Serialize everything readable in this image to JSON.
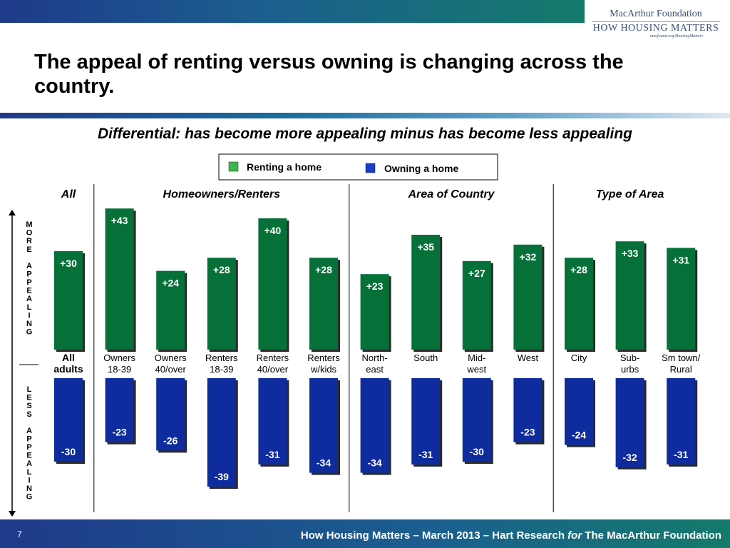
{
  "header": {
    "logo": {
      "line1": "MacArthur Foundation",
      "line2": "HOW HOUSING MATTERS",
      "url": "macfound.org/HousingMatters"
    }
  },
  "title": "The appeal of renting versus owning is changing across the country.",
  "subtitle": "Differential:  has become more appealing minus has become less appealing",
  "footer": {
    "page": "7",
    "text_a": "How Housing Matters – March 2013 – Hart Research ",
    "text_for": "for",
    "text_b": " The MacArthur Foundation"
  },
  "side_labels": {
    "more": "MORE APPEALING",
    "less": "LESS APPEALING"
  },
  "colors": {
    "renting": "#057139",
    "owning": "#0e2c9e",
    "renting_legend": "#3cb84a",
    "owning_legend": "#1a3cc8",
    "accent": "#1f3a8a"
  },
  "chart_data": {
    "type": "bar",
    "legend": {
      "placement": "top-center",
      "entries": [
        "Renting a home",
        "Owning a home"
      ]
    },
    "groups": [
      {
        "label": "All",
        "span": [
          0,
          0
        ]
      },
      {
        "label": "Homeowners/Renters",
        "span": [
          1,
          5
        ]
      },
      {
        "label": "Area of Country",
        "span": [
          6,
          9
        ]
      },
      {
        "label": "Type of Area",
        "span": [
          10,
          12
        ]
      }
    ],
    "categories": [
      [
        "All",
        "adults"
      ],
      [
        "Owners",
        "18-39"
      ],
      [
        "Owners",
        "40/over"
      ],
      [
        "Renters",
        "18-39"
      ],
      [
        "Renters",
        "40/over"
      ],
      [
        "Renters",
        "w/kids"
      ],
      [
        "North-",
        "east"
      ],
      [
        "South"
      ],
      [
        "Mid-",
        "west"
      ],
      [
        "West"
      ],
      [
        "City"
      ],
      [
        "Sub-",
        "urbs"
      ],
      [
        "Sm town/",
        "Rural"
      ]
    ],
    "series": [
      {
        "name": "Renting a home",
        "values": [
          30,
          43,
          24,
          28,
          40,
          28,
          23,
          35,
          27,
          32,
          28,
          33,
          31
        ],
        "labels": [
          "+30",
          "+43",
          "+24",
          "+28",
          "+40",
          "+28",
          "+23",
          "+35",
          "+27",
          "+32",
          "+28",
          "+33",
          "+31"
        ]
      },
      {
        "name": "Owning a home",
        "values": [
          -30,
          -23,
          -26,
          -39,
          -31,
          -34,
          -34,
          -31,
          -30,
          -23,
          -24,
          -32,
          -31
        ],
        "labels": [
          "-30",
          "-23",
          "-26",
          "-39",
          "-31",
          "-34",
          "-34",
          "-31",
          "-30",
          "-23",
          "-24",
          "-32",
          "-31"
        ]
      }
    ],
    "ylim": [
      -39,
      43
    ],
    "grid": false
  }
}
